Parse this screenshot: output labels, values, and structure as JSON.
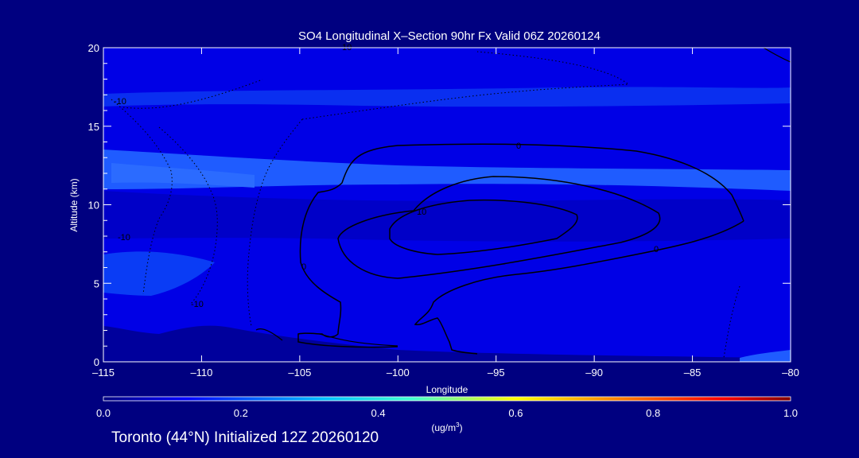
{
  "chart_data": {
    "type": "heatmap",
    "title": "SO4 Longitudinal X–Section 90hr  Fx Valid 06Z 20260124",
    "xlabel": "Longitude",
    "ylabel": "Altitude (km)",
    "xlim": [
      -115,
      -80
    ],
    "ylim": [
      0,
      20
    ],
    "x_ticks": [
      -115,
      -110,
      -105,
      -100,
      -95,
      -90,
      -85,
      -80
    ],
    "x_tick_labels": [
      "–115",
      "–110",
      "–105",
      "–100",
      "–95",
      "–90",
      "–85",
      "–80"
    ],
    "y_ticks": [
      0,
      5,
      10,
      15,
      20
    ],
    "y_tick_labels": [
      "0",
      "5",
      "10",
      "15",
      "20"
    ],
    "colorbar": {
      "min": 0.0,
      "max": 1.0,
      "tick_labels": [
        "0.0",
        "0.2",
        "0.4",
        "0.6",
        "0.8",
        "1.0"
      ],
      "unit_label": "(ug/m",
      "unit_superscript": "3",
      "unit_close": ")"
    },
    "contour_labels": [
      "0",
      "10",
      "10",
      "0",
      "0",
      "-10",
      "-10",
      "-10"
    ],
    "colors": {
      "background": "#000080",
      "band_low": "#0000cd",
      "band_mid": "#0a2ff0",
      "band_high": "#1f5cff",
      "surface": "#00009c",
      "contour": "#000000"
    }
  },
  "footer": "Toronto (44°N) Initialized 12Z 20260120"
}
